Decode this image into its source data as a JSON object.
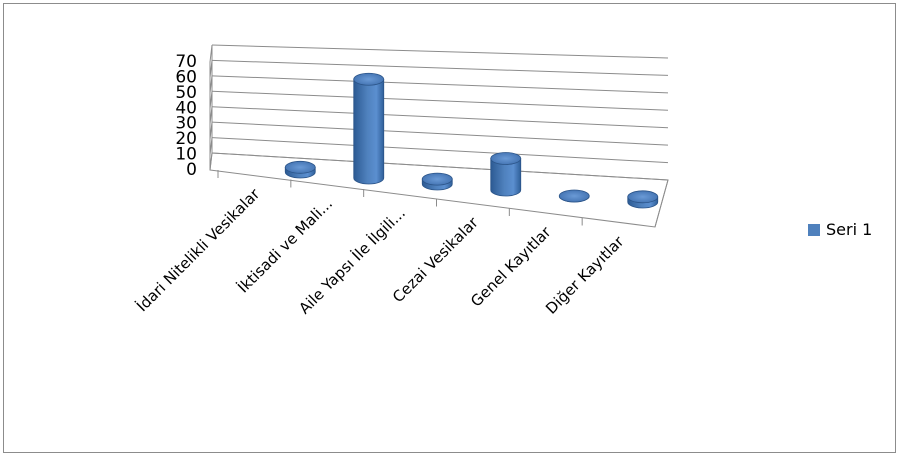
{
  "chart_data": {
    "type": "bar",
    "style": "3d-cylinder",
    "categories": [
      "İdari Nitelikli Vesikalar",
      "İktisadi ve Mali...",
      "Aile Yapsı İle İlgili...",
      "Cezai Vesikalar",
      "Genel Kayıtlar",
      "Diğer Kayıtlar"
    ],
    "series": [
      {
        "name": "Seri 1",
        "values": [
          3,
          62,
          3,
          19,
          0,
          3
        ],
        "color": "#4f81bd"
      }
    ],
    "yticks": [
      0,
      10,
      20,
      30,
      40,
      50,
      60,
      70
    ],
    "ylim": [
      0,
      70
    ],
    "grid": true,
    "legend": "right"
  }
}
